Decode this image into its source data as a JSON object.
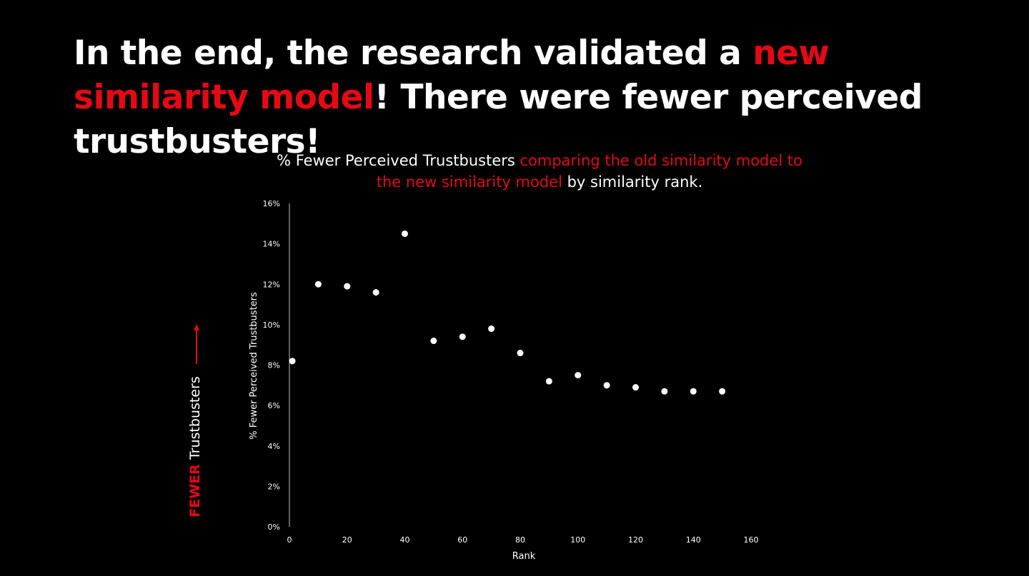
{
  "headline": {
    "part1": "In the end, the research validated a ",
    "part2_red": "new similarity model",
    "part3": "! There were fewer perceived trustbusters!"
  },
  "side_label": {
    "red": "FEWER",
    "white": " Trustbusters"
  },
  "colors": {
    "background": "#000000",
    "text": "#ffffff",
    "accent_red": "#e50914",
    "axis": "#bfbfbf",
    "points": "#ffffff"
  },
  "chart_data": {
    "type": "scatter",
    "title": "% Fewer Perceived Trustbusters comparing the old similarity model to the new similarity model by similarity rank.",
    "title_parts": {
      "white1": "% Fewer Perceived Trustbusters ",
      "red": "comparing the old similarity model to the new similarity model",
      "white2": " by similarity rank."
    },
    "xlabel": "Rank",
    "ylabel": "% Fewer Perceived Trustbusters",
    "xlim": [
      0,
      160
    ],
    "ylim": [
      0,
      0.16
    ],
    "xticks": [
      "0",
      "20",
      "40",
      "60",
      "80",
      "100",
      "120",
      "140",
      "160"
    ],
    "xtick_values": [
      0,
      20,
      40,
      60,
      80,
      100,
      120,
      140,
      160
    ],
    "yticks": [
      "0%",
      "2%",
      "4%",
      "6%",
      "8%",
      "10%",
      "12%",
      "14%",
      "16%"
    ],
    "ytick_values": [
      0,
      0.02,
      0.04,
      0.06,
      0.08,
      0.1,
      0.12,
      0.14,
      0.16
    ],
    "grid": false,
    "legend": "none",
    "points": [
      {
        "x": 1,
        "y": 0.082
      },
      {
        "x": 10,
        "y": 0.12
      },
      {
        "x": 20,
        "y": 0.119
      },
      {
        "x": 30,
        "y": 0.116
      },
      {
        "x": 40,
        "y": 0.145
      },
      {
        "x": 50,
        "y": 0.092
      },
      {
        "x": 60,
        "y": 0.094
      },
      {
        "x": 70,
        "y": 0.098
      },
      {
        "x": 80,
        "y": 0.086
      },
      {
        "x": 90,
        "y": 0.072
      },
      {
        "x": 100,
        "y": 0.075
      },
      {
        "x": 110,
        "y": 0.07
      },
      {
        "x": 120,
        "y": 0.069
      },
      {
        "x": 130,
        "y": 0.067
      },
      {
        "x": 140,
        "y": 0.067
      },
      {
        "x": 150,
        "y": 0.067
      }
    ]
  }
}
